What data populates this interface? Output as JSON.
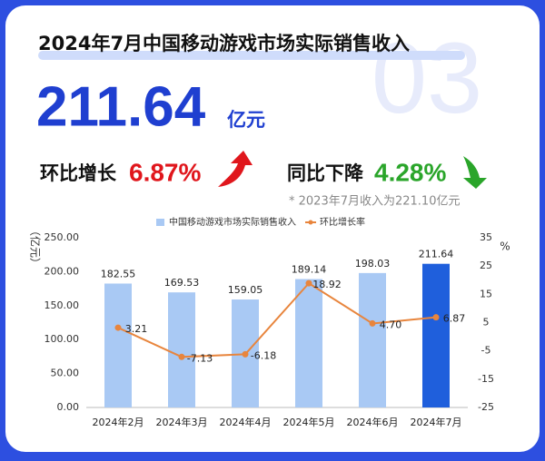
{
  "header": {
    "title": "2024年7月中国移动游戏市场实际销售收入",
    "revenue": "211.64",
    "revenue_unit": "亿元",
    "badge": "03",
    "mom_label": "环比增长",
    "mom_value": "6.87%",
    "yoy_label": "同比下降",
    "yoy_value": "4.28%",
    "note": "* 2023年7月收入为221.10亿元"
  },
  "chart_data": {
    "type": "bar",
    "categories": [
      "2024年2月",
      "2024年3月",
      "2024年4月",
      "2024年5月",
      "2024年6月",
      "2024年7月"
    ],
    "series": [
      {
        "name": "中国移动游戏市场实际销售收入",
        "type": "bar",
        "color": "#a9c9f4",
        "highlight_color": "#1f5fdc",
        "values": [
          182.55,
          169.53,
          159.05,
          189.14,
          198.03,
          211.64
        ]
      },
      {
        "name": "环比增长率",
        "type": "line",
        "axis": "y2",
        "color": "#e8853d",
        "values": [
          3.21,
          -7.13,
          -6.18,
          18.92,
          4.7,
          6.87
        ],
        "value_labels": [
          "3.21",
          "-7.13",
          "-6.18",
          "18.92",
          "4.70",
          "6.87"
        ]
      }
    ],
    "y_label": "（亿元）",
    "y2_label": "%",
    "ylim": [
      0,
      250
    ],
    "yticks": [
      {
        "value": 0,
        "label": "0.00"
      },
      {
        "value": 50,
        "label": "50.00"
      },
      {
        "value": 100,
        "label": "100.00"
      },
      {
        "value": 150,
        "label": "150.00"
      },
      {
        "value": 200,
        "label": "200.00"
      },
      {
        "value": 250,
        "label": "250.00"
      }
    ],
    "y2lim": [
      -25,
      35
    ],
    "y2ticks": [
      -25,
      -15,
      -5,
      5,
      15,
      25,
      35
    ],
    "grid": false,
    "legend": "top"
  }
}
